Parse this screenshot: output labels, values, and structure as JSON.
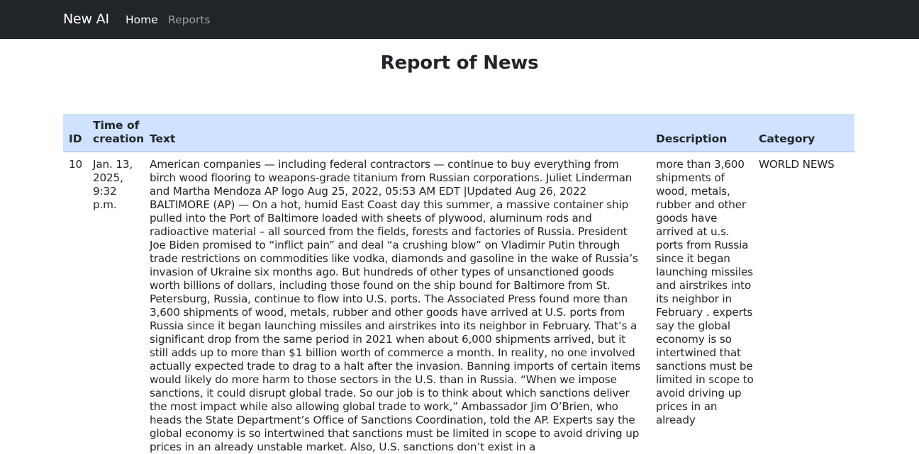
{
  "navbar": {
    "brand": "New AI",
    "links": [
      {
        "label": "Home",
        "active": true
      },
      {
        "label": "Reports",
        "active": false
      }
    ]
  },
  "page": {
    "title": "Report of News"
  },
  "table": {
    "headers": {
      "id": "ID",
      "time": "Time of creation",
      "text": "Text",
      "description": "Description",
      "category": "Category"
    },
    "rows": [
      {
        "id": "10",
        "time": "Jan. 13, 2025, 9:32 p.m.",
        "text": "American companies — including federal contractors — continue to buy everything from birch wood flooring to weapons-grade titanium from Russian corporations. Juliet Linderman and Martha Mendoza AP logo Aug 25, 2022, 05:53 AM EDT |Updated Aug 26, 2022 BALTIMORE (AP) — On a hot, humid East Coast day this summer, a massive container ship pulled into the Port of Baltimore loaded with sheets of plywood, aluminum rods and radioactive material – all sourced from the fields, forests and factories of Russia. President Joe Biden promised to “inflict pain” and deal “a crushing blow” on Vladimir Putin through trade restrictions on commodities like vodka, diamonds and gasoline in the wake of Russia’s invasion of Ukraine six months ago. But hundreds of other types of unsanctioned goods worth billions of dollars, including those found on the ship bound for Baltimore from St. Petersburg, Russia, continue to flow into U.S. ports. The Associated Press found more than 3,600 shipments of wood, metals, rubber and other goods have arrived at U.S. ports from Russia since it began launching missiles and airstrikes into its neighbor in February. That’s a significant drop from the same period in 2021 when about 6,000 shipments arrived, but it still adds up to more than $1 billion worth of commerce a month. In reality, no one involved actually expected trade to drag to a halt after the invasion. Banning imports of certain items would likely do more harm to those sectors in the U.S. than in Russia. “When we impose sanctions, it could disrupt global trade. So our job is to think about which sanctions deliver the most impact while also allowing global trade to work,” Ambassador Jim O’Brien, who heads the State Department’s Office of Sanctions Coordination, told the AP. Experts say the global economy is so intertwined that sanctions must be limited in scope to avoid driving up prices in an already unstable market. Also, U.S. sanctions don’t exist in a",
        "description": "more than 3,600 shipments of wood, metals, rubber and other goods have arrived at u.s. ports from Russia since it began launching missiles and airstrikes into its neighbor in February . experts say the global economy is so intertwined that sanctions must be limited in scope to avoid driving up prices in an already",
        "category": "WORLD NEWS"
      }
    ]
  },
  "colors": {
    "navbar_bg": "#212529",
    "header_row_bg": "#cfe2ff"
  }
}
